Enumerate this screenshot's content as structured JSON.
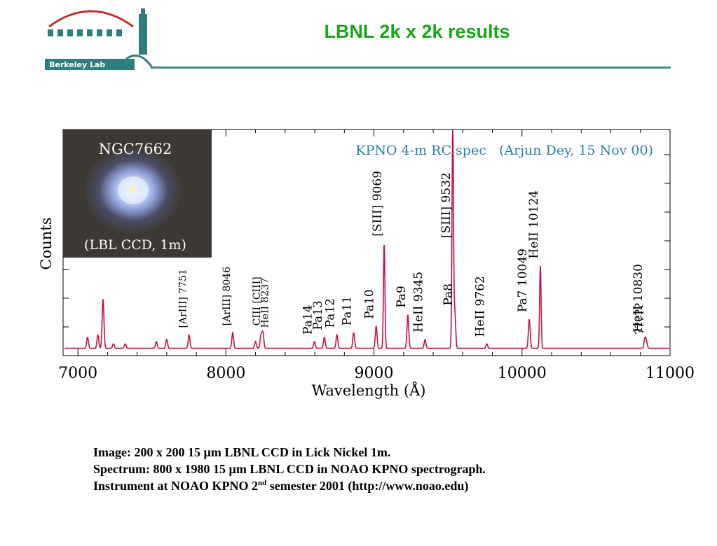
{
  "slide": {
    "title": "LBNL 2k x 2k results",
    "logo_text": "Berkeley Lab"
  },
  "inset": {
    "label_top": "NGC7662",
    "label_bottom": "(LBL CCD, 1m)"
  },
  "caption": {
    "line1": "Image: 200 x 200 15 µm LBNL CCD in Lick Nickel 1m.",
    "line2": "Spectrum: 800 x 1980 15 µm LBNL CCD in NOAO KPNO spectrograph.",
    "line3_pre": "Instrument at NOAO KPNO 2",
    "line3_sup": "nd",
    "line3_post": " semester 2001 (http://www.noao.edu)"
  },
  "colors": {
    "title": "#1aa51a",
    "rule": "#3d8b8a",
    "spectrum": "#c0143c",
    "chart_title": "#2a7fb0",
    "logo": "#2f7d7d"
  },
  "chart_data": {
    "type": "line",
    "title": "KPNO 4-m RC spec   (Arjun Dey, 15 Nov 00)",
    "xlabel": "Wavelength (Å)",
    "ylabel": "Counts",
    "xlim": [
      6900,
      11000
    ],
    "ylim": [
      0,
      100
    ],
    "xticks": [
      7000,
      8000,
      9000,
      10000,
      11000
    ],
    "x_minor_step": 200,
    "baseline": 2,
    "lines": [
      {
        "x": 7065,
        "y": 5
      },
      {
        "x": 7135,
        "y": 6
      },
      {
        "x": 7170,
        "y": 22
      },
      {
        "x": 7240,
        "y": 2
      },
      {
        "x": 7320,
        "y": 2
      },
      {
        "x": 7530,
        "y": 3
      },
      {
        "x": 7600,
        "y": 4
      },
      {
        "x": 7751,
        "y": 6,
        "label": "[ArIII] 7751"
      },
      {
        "x": 8046,
        "y": 7,
        "label": "[ArIII] 8046"
      },
      {
        "x": 8200,
        "y": 3
      },
      {
        "x": 8237,
        "y": 6,
        "label": "HeII 8237"
      },
      {
        "x": 8250,
        "y": 7,
        "label": "CIII [CIII]"
      },
      {
        "x": 8598,
        "y": 3,
        "label": "Pa14"
      },
      {
        "x": 8665,
        "y": 5,
        "label": "Pa13"
      },
      {
        "x": 8750,
        "y": 6,
        "label": "Pa12"
      },
      {
        "x": 8863,
        "y": 7,
        "label": "Pa11"
      },
      {
        "x": 9015,
        "y": 10,
        "label": "Pa10"
      },
      {
        "x": 9069,
        "y": 47,
        "label": "[SIII] 9069"
      },
      {
        "x": 9229,
        "y": 15,
        "label": "Pa9"
      },
      {
        "x": 9345,
        "y": 4,
        "label": "HeII 9345"
      },
      {
        "x": 9532,
        "y": 100,
        "label": "[SIII] 9532"
      },
      {
        "x": 9546,
        "y": 16,
        "label": "Pa8"
      },
      {
        "x": 9762,
        "y": 2,
        "label": "HeII 9762"
      },
      {
        "x": 10049,
        "y": 13,
        "label": "Pa7 10049"
      },
      {
        "x": 10124,
        "y": 37,
        "label": "HeII 10124"
      },
      {
        "x": 10830,
        "y": 4,
        "label": "HeII 10830"
      },
      {
        "x": 10840,
        "y": 3,
        "label": "?????"
      }
    ]
  }
}
